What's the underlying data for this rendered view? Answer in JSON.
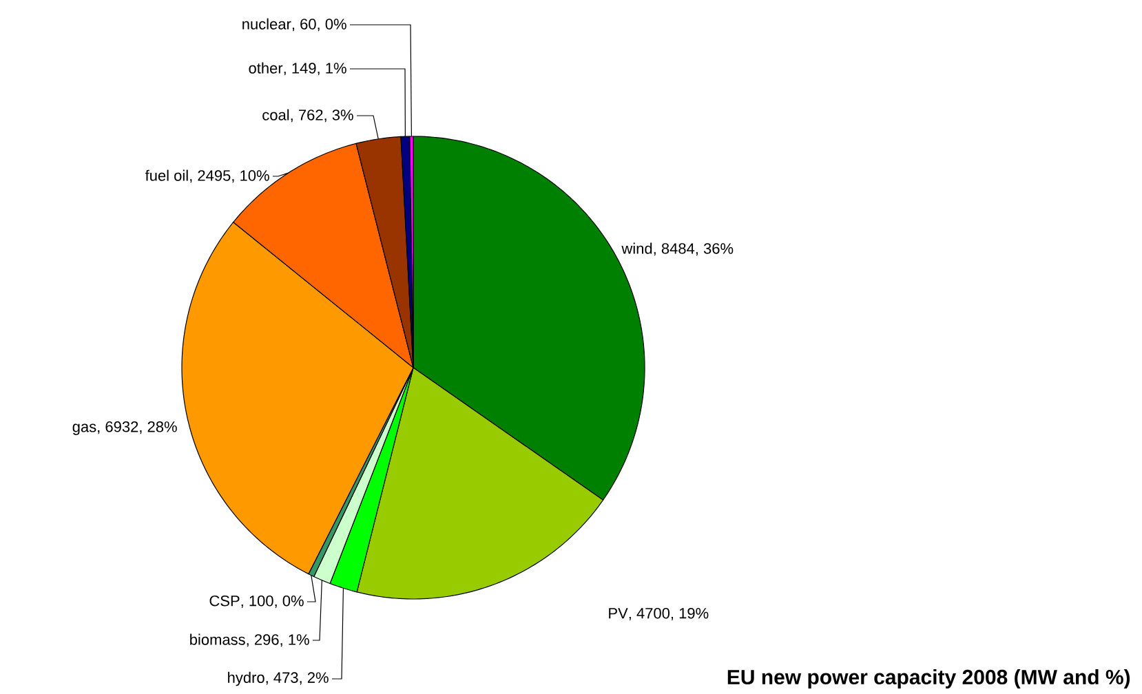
{
  "chart_data": {
    "type": "pie",
    "title": "EU new power capacity 2008 (MW and %)",
    "categories": [
      "wind",
      "PV",
      "hydro",
      "biomass",
      "CSP",
      "gas",
      "fuel oil",
      "coal",
      "other",
      "nuclear"
    ],
    "values": [
      8484,
      4700,
      473,
      296,
      100,
      6932,
      2495,
      762,
      149,
      60
    ],
    "value_labels": [
      ", 8484, 36%",
      ", 4700, 19%",
      ", 473, 2%",
      ", 296, 1%",
      ", 100, 0%",
      ", 6932, 28%",
      ", 2495, 10%",
      ", 762, 3%",
      ", 149, 1%",
      ", 60, 0%"
    ],
    "colors": [
      "#008000",
      "#99cc00",
      "#00ff00",
      "#ccffcc",
      "#339966",
      "#ff9900",
      "#ff6600",
      "#993300",
      "#000080",
      "#ff00ff"
    ]
  }
}
